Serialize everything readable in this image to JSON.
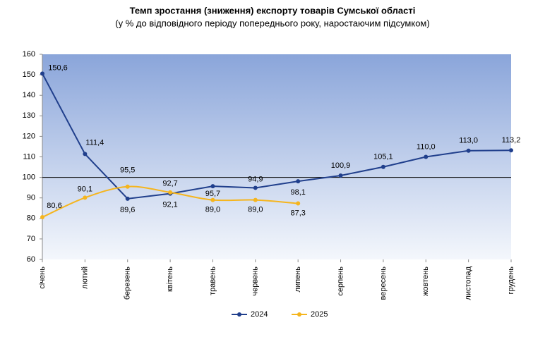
{
  "chart_data": {
    "type": "line",
    "title": "Темп зростання (зниження) експорту товарів Сумської області",
    "subtitle": "(у % до відповідного періоду попереднього року, наростаючим підсумком)",
    "categories": [
      "січень",
      "лютий",
      "березень",
      "квітень",
      "травень",
      "червень",
      "липень",
      "серпень",
      "вересень",
      "жовтень",
      "листопад",
      "грудень"
    ],
    "series": [
      {
        "name": "2024",
        "color": "#203f8c",
        "smooth": false,
        "values": [
          150.6,
          111.4,
          89.6,
          92.1,
          95.7,
          94.9,
          98.1,
          100.9,
          105.1,
          110.0,
          113.0,
          113.2
        ],
        "value_labels": [
          "150,6",
          "111,4",
          "89,6",
          "92,1",
          "95,7",
          "94,9",
          "98,1",
          "100,9",
          "105,1",
          "110,0",
          "113,0",
          "113,2"
        ]
      },
      {
        "name": "2025",
        "color": "#f5b51e",
        "smooth": true,
        "values": [
          80.6,
          90.1,
          95.5,
          92.7,
          89.0,
          89.0,
          87.3,
          null,
          null,
          null,
          null,
          null
        ],
        "value_labels": [
          "80,6",
          "90,1",
          "95,5",
          "92,7",
          "89,0",
          "89,0",
          "87,3",
          null,
          null,
          null,
          null,
          null
        ]
      }
    ],
    "ylim": [
      60,
      160
    ],
    "yticks": [
      60,
      70,
      80,
      90,
      100,
      110,
      120,
      130,
      140,
      150,
      160
    ],
    "reference_line": 100,
    "legend": "bottom"
  }
}
